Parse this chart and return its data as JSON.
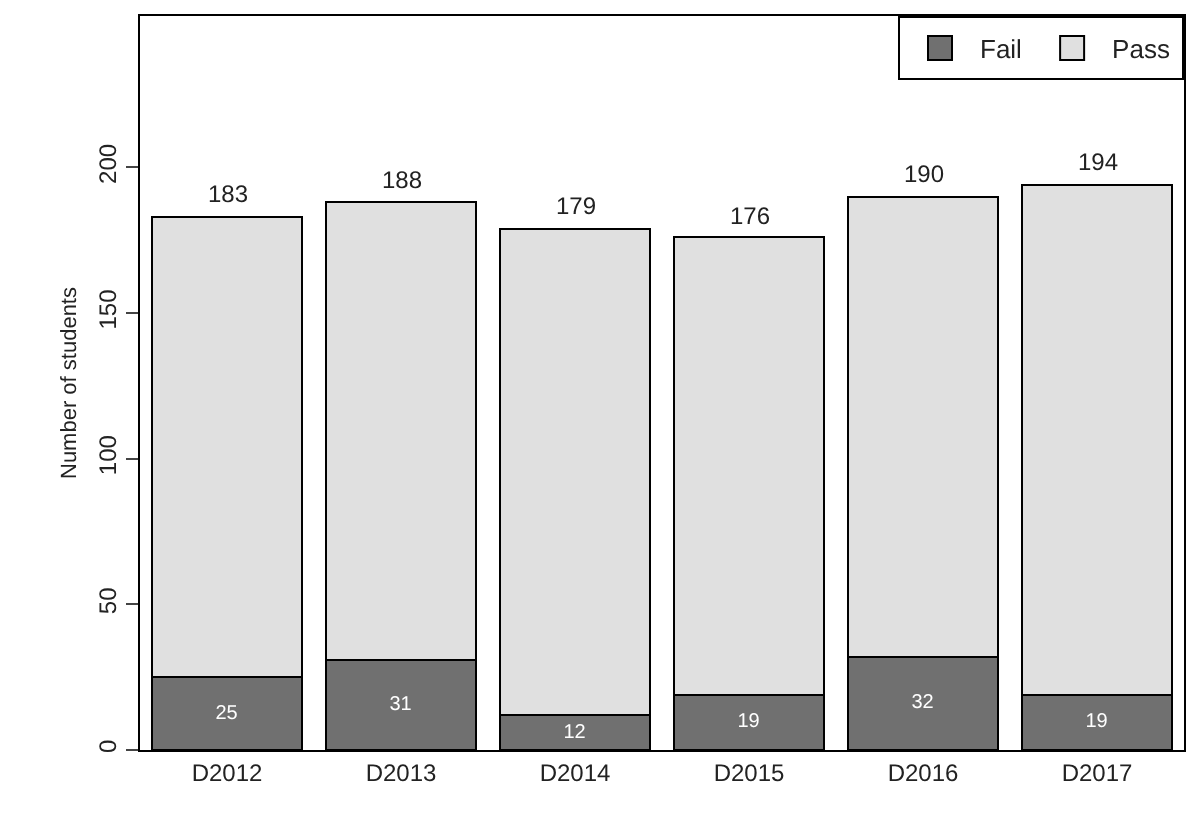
{
  "chart_data": {
    "type": "bar",
    "stacked": true,
    "ylabel": "Number of students",
    "categories": [
      "D2012",
      "D2013",
      "D2014",
      "D2015",
      "D2016",
      "D2017"
    ],
    "series": [
      {
        "name": "Fail",
        "color": "#707070",
        "values": [
          25,
          31,
          12,
          19,
          32,
          19
        ],
        "value_labels": [
          "25",
          "31",
          "12",
          "19",
          "32",
          "19"
        ]
      },
      {
        "name": "Pass",
        "color": "#e0e0e0",
        "values": [
          158,
          157,
          167,
          157,
          158,
          175
        ]
      }
    ],
    "totals": [
      "183",
      "188",
      "179",
      "176",
      "190",
      "194"
    ],
    "ylim": [
      0,
      252
    ],
    "yticks": [
      0,
      50,
      100,
      150,
      200
    ],
    "grid": false,
    "legend": "top right"
  }
}
